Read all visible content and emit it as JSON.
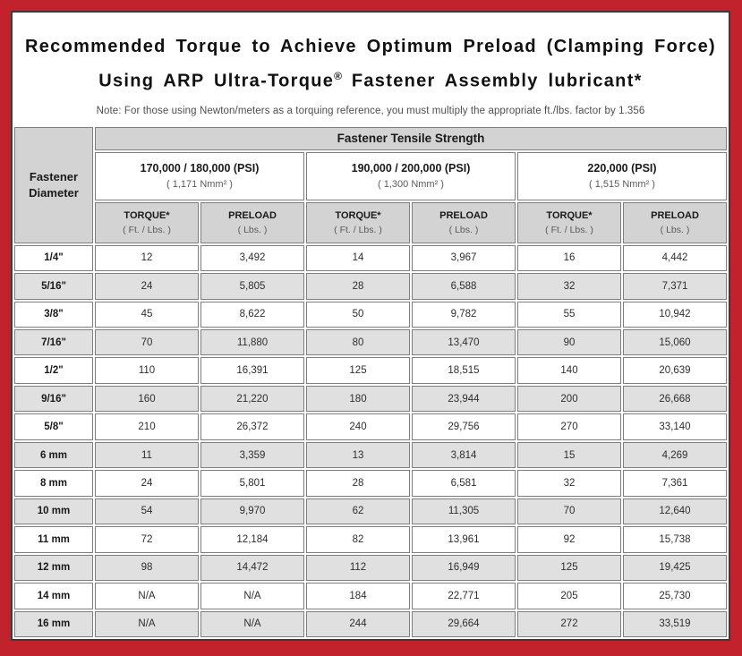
{
  "title": {
    "line1": "Recommended Torque to Achieve Optimum Preload (Clamping Force)",
    "line2_prefix": "Using ARP Ultra-Torque",
    "line2_reg_mark": "®",
    "line2_suffix": " Fastener Assembly lubricant*"
  },
  "note": "Note: For those using Newton/meters as a torquing reference, you must multiply the appropriate ft./lbs. factor by 1.356",
  "table": {
    "tensile_header": "Fastener Tensile Strength",
    "diameter_header_line1": "Fastener",
    "diameter_header_line2": "Diameter",
    "strength_groups": [
      {
        "psi": "170,000 / 180,000 (PSI)",
        "nmm": "( 1,171 Nmm² )"
      },
      {
        "psi": "190,000 / 200,000 (PSI)",
        "nmm": "( 1,300 Nmm² )"
      },
      {
        "psi": "220,000 (PSI)",
        "nmm": "( 1,515 Nmm² )"
      }
    ],
    "col_headers": {
      "torque_label": "TORQUE*",
      "torque_unit": "( Ft. / Lbs. )",
      "preload_label": "PRELOAD",
      "preload_unit": "( Lbs. )"
    },
    "rows": [
      {
        "diameter": "1/4\"",
        "values": [
          "12",
          "3,492",
          "14",
          "3,967",
          "16",
          "4,442"
        ]
      },
      {
        "diameter": "5/16\"",
        "values": [
          "24",
          "5,805",
          "28",
          "6,588",
          "32",
          "7,371"
        ]
      },
      {
        "diameter": "3/8\"",
        "values": [
          "45",
          "8,622",
          "50",
          "9,782",
          "55",
          "10,942"
        ]
      },
      {
        "diameter": "7/16\"",
        "values": [
          "70",
          "11,880",
          "80",
          "13,470",
          "90",
          "15,060"
        ]
      },
      {
        "diameter": "1/2\"",
        "values": [
          "110",
          "16,391",
          "125",
          "18,515",
          "140",
          "20,639"
        ]
      },
      {
        "diameter": "9/16\"",
        "values": [
          "160",
          "21,220",
          "180",
          "23,944",
          "200",
          "26,668"
        ]
      },
      {
        "diameter": "5/8\"",
        "values": [
          "210",
          "26,372",
          "240",
          "29,756",
          "270",
          "33,140"
        ]
      },
      {
        "diameter": "6 mm",
        "values": [
          "11",
          "3,359",
          "13",
          "3,814",
          "15",
          "4,269"
        ]
      },
      {
        "diameter": "8 mm",
        "values": [
          "24",
          "5,801",
          "28",
          "6,581",
          "32",
          "7,361"
        ]
      },
      {
        "diameter": "10 mm",
        "values": [
          "54",
          "9,970",
          "62",
          "11,305",
          "70",
          "12,640"
        ]
      },
      {
        "diameter": "11 mm",
        "values": [
          "72",
          "12,184",
          "82",
          "13,961",
          "92",
          "15,738"
        ]
      },
      {
        "diameter": "12 mm",
        "values": [
          "98",
          "14,472",
          "112",
          "16,949",
          "125",
          "19,425"
        ]
      },
      {
        "diameter": "14 mm",
        "values": [
          "N/A",
          "N/A",
          "184",
          "22,771",
          "205",
          "25,730"
        ]
      },
      {
        "diameter": "16 mm",
        "values": [
          "N/A",
          "N/A",
          "244",
          "29,664",
          "272",
          "33,519"
        ]
      }
    ]
  },
  "colors": {
    "frame_red": "#c2222b",
    "panel_border": "#3d3a3b",
    "header_gray": "#d3d3d3",
    "stripe_gray": "#e0e0e0",
    "cell_border": "#7e7e7e"
  }
}
